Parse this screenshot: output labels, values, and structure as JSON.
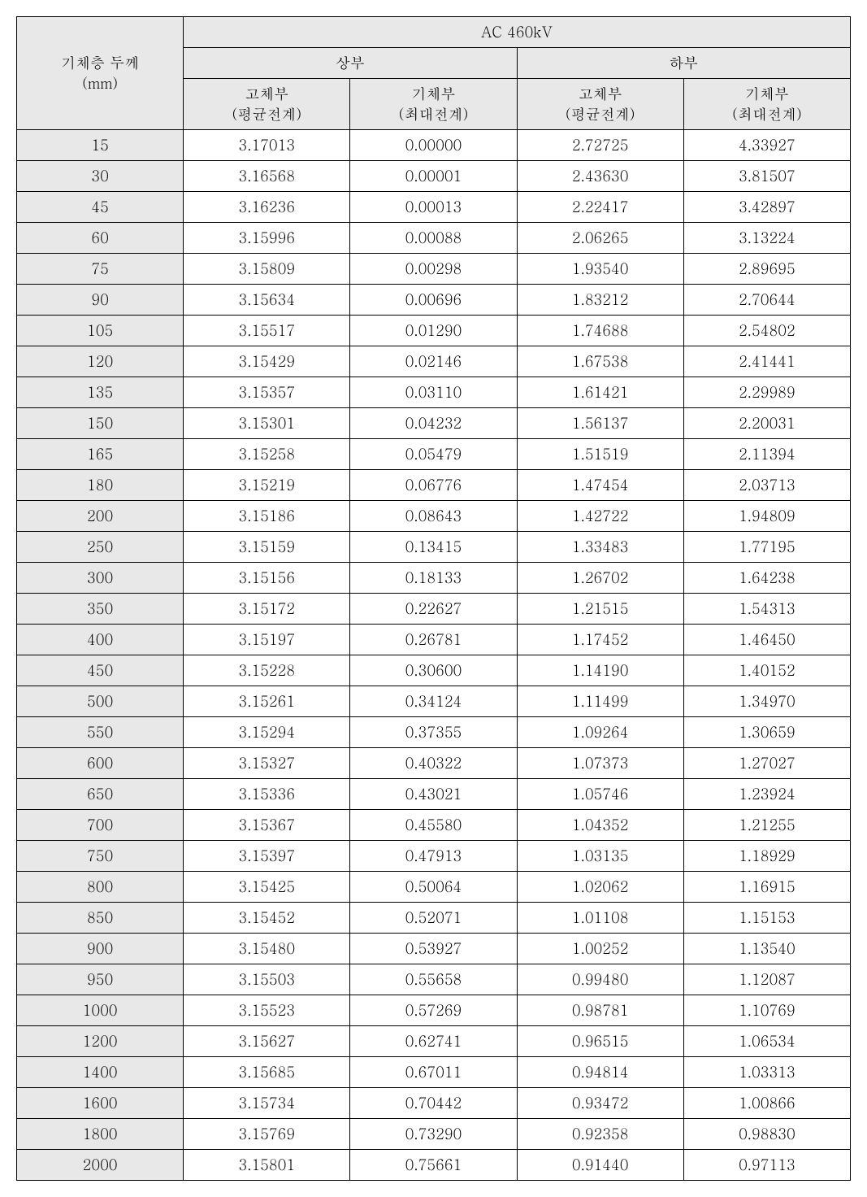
{
  "table": {
    "type": "table",
    "background_color": "#ffffff",
    "header_background": "#e8e8e8",
    "border_color": "#000000",
    "font_family": "Batang, serif",
    "font_size_pt": 14,
    "row_header": {
      "line1": "기체층 두께",
      "line2": "(mm)"
    },
    "top_header": "AC 460kV",
    "group_headers": [
      "상부",
      "하부"
    ],
    "sub_headers": [
      {
        "l1": "고체부",
        "l2": "(평균전계)"
      },
      {
        "l1": "기체부",
        "l2": "(최대전계)"
      },
      {
        "l1": "고체부",
        "l2": "(평균전계)"
      },
      {
        "l1": "기체부",
        "l2": "(최대전계)"
      }
    ],
    "column_widths_pct": [
      20,
      20,
      20,
      20,
      20
    ],
    "rows": [
      [
        "15",
        "3.17013",
        "0.00000",
        "2.72725",
        "4.33927"
      ],
      [
        "30",
        "3.16568",
        "0.00001",
        "2.43630",
        "3.81507"
      ],
      [
        "45",
        "3.16236",
        "0.00013",
        "2.22417",
        "3.42897"
      ],
      [
        "60",
        "3.15996",
        "0.00088",
        "2.06265",
        "3.13224"
      ],
      [
        "75",
        "3.15809",
        "0.00298",
        "1.93540",
        "2.89695"
      ],
      [
        "90",
        "3.15634",
        "0.00696",
        "1.83212",
        "2.70644"
      ],
      [
        "105",
        "3.15517",
        "0.01290",
        "1.74688",
        "2.54802"
      ],
      [
        "120",
        "3.15429",
        "0.02146",
        "1.67538",
        "2.41441"
      ],
      [
        "135",
        "3.15357",
        "0.03110",
        "1.61421",
        "2.29989"
      ],
      [
        "150",
        "3.15301",
        "0.04232",
        "1.56137",
        "2.20031"
      ],
      [
        "165",
        "3.15258",
        "0.05479",
        "1.51519",
        "2.11394"
      ],
      [
        "180",
        "3.15219",
        "0.06776",
        "1.47454",
        "2.03713"
      ],
      [
        "200",
        "3.15186",
        "0.08643",
        "1.42722",
        "1.94809"
      ],
      [
        "250",
        "3.15159",
        "0.13415",
        "1.33483",
        "1.77195"
      ],
      [
        "300",
        "3.15156",
        "0.18133",
        "1.26702",
        "1.64238"
      ],
      [
        "350",
        "3.15172",
        "0.22627",
        "1.21515",
        "1.54313"
      ],
      [
        "400",
        "3.15197",
        "0.26781",
        "1.17452",
        "1.46450"
      ],
      [
        "450",
        "3.15228",
        "0.30600",
        "1.14190",
        "1.40152"
      ],
      [
        "500",
        "3.15261",
        "0.34124",
        "1.11499",
        "1.34970"
      ],
      [
        "550",
        "3.15294",
        "0.37355",
        "1.09264",
        "1.30659"
      ],
      [
        "600",
        "3.15327",
        "0.40322",
        "1.07373",
        "1.27027"
      ],
      [
        "650",
        "3.15336",
        "0.43021",
        "1.05746",
        "1.23924"
      ],
      [
        "700",
        "3.15367",
        "0.45580",
        "1.04352",
        "1.21255"
      ],
      [
        "750",
        "3.15397",
        "0.47913",
        "1.03135",
        "1.18929"
      ],
      [
        "800",
        "3.15425",
        "0.50064",
        "1.02062",
        "1.16915"
      ],
      [
        "850",
        "3.15452",
        "0.52071",
        "1.01108",
        "1.15153"
      ],
      [
        "900",
        "3.15480",
        "0.53927",
        "1.00252",
        "1.13540"
      ],
      [
        "950",
        "3.15503",
        "0.55658",
        "0.99480",
        "1.12087"
      ],
      [
        "1000",
        "3.15523",
        "0.57269",
        "0.98781",
        "1.10769"
      ],
      [
        "1200",
        "3.15627",
        "0.62741",
        "0.96515",
        "1.06534"
      ],
      [
        "1400",
        "3.15685",
        "0.67011",
        "0.94814",
        "1.03313"
      ],
      [
        "1600",
        "3.15734",
        "0.70442",
        "0.93472",
        "1.00866"
      ],
      [
        "1800",
        "3.15769",
        "0.73290",
        "0.92358",
        "0.98830"
      ],
      [
        "2000",
        "3.15801",
        "0.75661",
        "0.91440",
        "0.97113"
      ]
    ]
  }
}
